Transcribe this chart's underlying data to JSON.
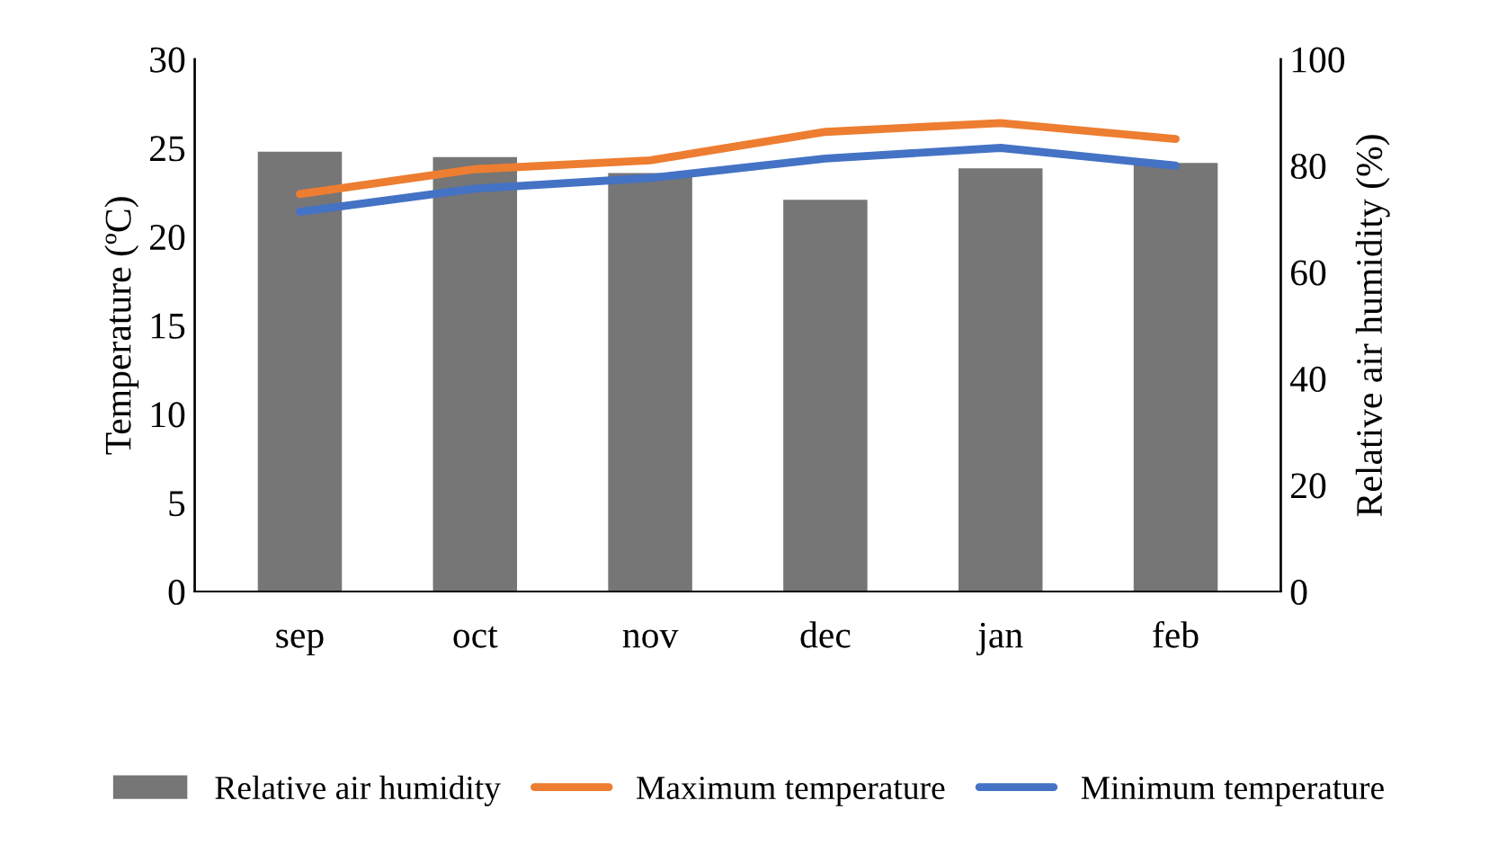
{
  "chart_data": {
    "type": "bar",
    "ylabel": "Temperature (ºC)",
    "y2label": "Relative air humidity (%)",
    "categories": [
      "sep",
      "oct",
      "nov",
      "dec",
      "jan",
      "feb"
    ],
    "series": [
      {
        "name": "Relative air humidity",
        "axis": "y2",
        "color": "#767676",
        "values": [
          82.6,
          81.6,
          78.6,
          73.6,
          79.5,
          80.5
        ]
      },
      {
        "name": "Maximum temperature",
        "type": "line",
        "color": "#ed7d31",
        "values": [
          22.4,
          23.8,
          24.3,
          25.9,
          26.4,
          25.5
        ]
      },
      {
        "name": "Minimum temperature",
        "type": "line",
        "color": "#4472c4",
        "values": [
          21.4,
          22.7,
          23.3,
          24.4,
          25.0,
          24.0
        ]
      }
    ],
    "ylim": [
      0,
      30
    ],
    "yticks": [
      0,
      5,
      10,
      15,
      20,
      25,
      30
    ],
    "y2lim": [
      0,
      100
    ],
    "y2ticks": [
      0,
      20,
      40,
      60,
      80,
      100
    ],
    "grid": false,
    "legend": "bottom"
  }
}
